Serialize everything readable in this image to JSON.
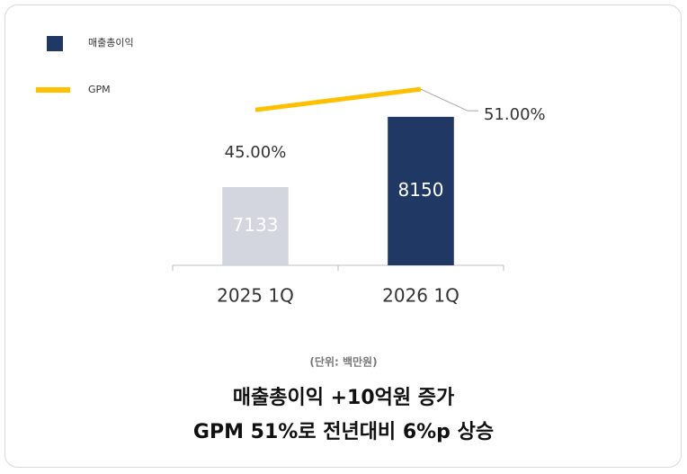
{
  "chart_data": {
    "type": "bar_line",
    "categories": [
      "2025 1Q",
      "2026 1Q"
    ],
    "series": [
      {
        "name": "매출총이익",
        "type": "bar",
        "color": "#203864",
        "colors": [
          "#d3d6de",
          "#203864"
        ],
        "values": [
          7133,
          8150
        ]
      },
      {
        "name": "GPM",
        "type": "line",
        "axis": "y2",
        "color": "#ffc000",
        "values": [
          45,
          51
        ],
        "value_labels": [
          "45.00%",
          "51.00%"
        ]
      }
    ],
    "ylim": [
      6000,
      8500
    ],
    "y2lim": [
      0,
      50
    ],
    "unit_note": "(단위: 백만원)",
    "headline": [
      "매출총이익 +10억원 증가",
      "GPM 51%로 전년대비 6%p 상승"
    ]
  }
}
